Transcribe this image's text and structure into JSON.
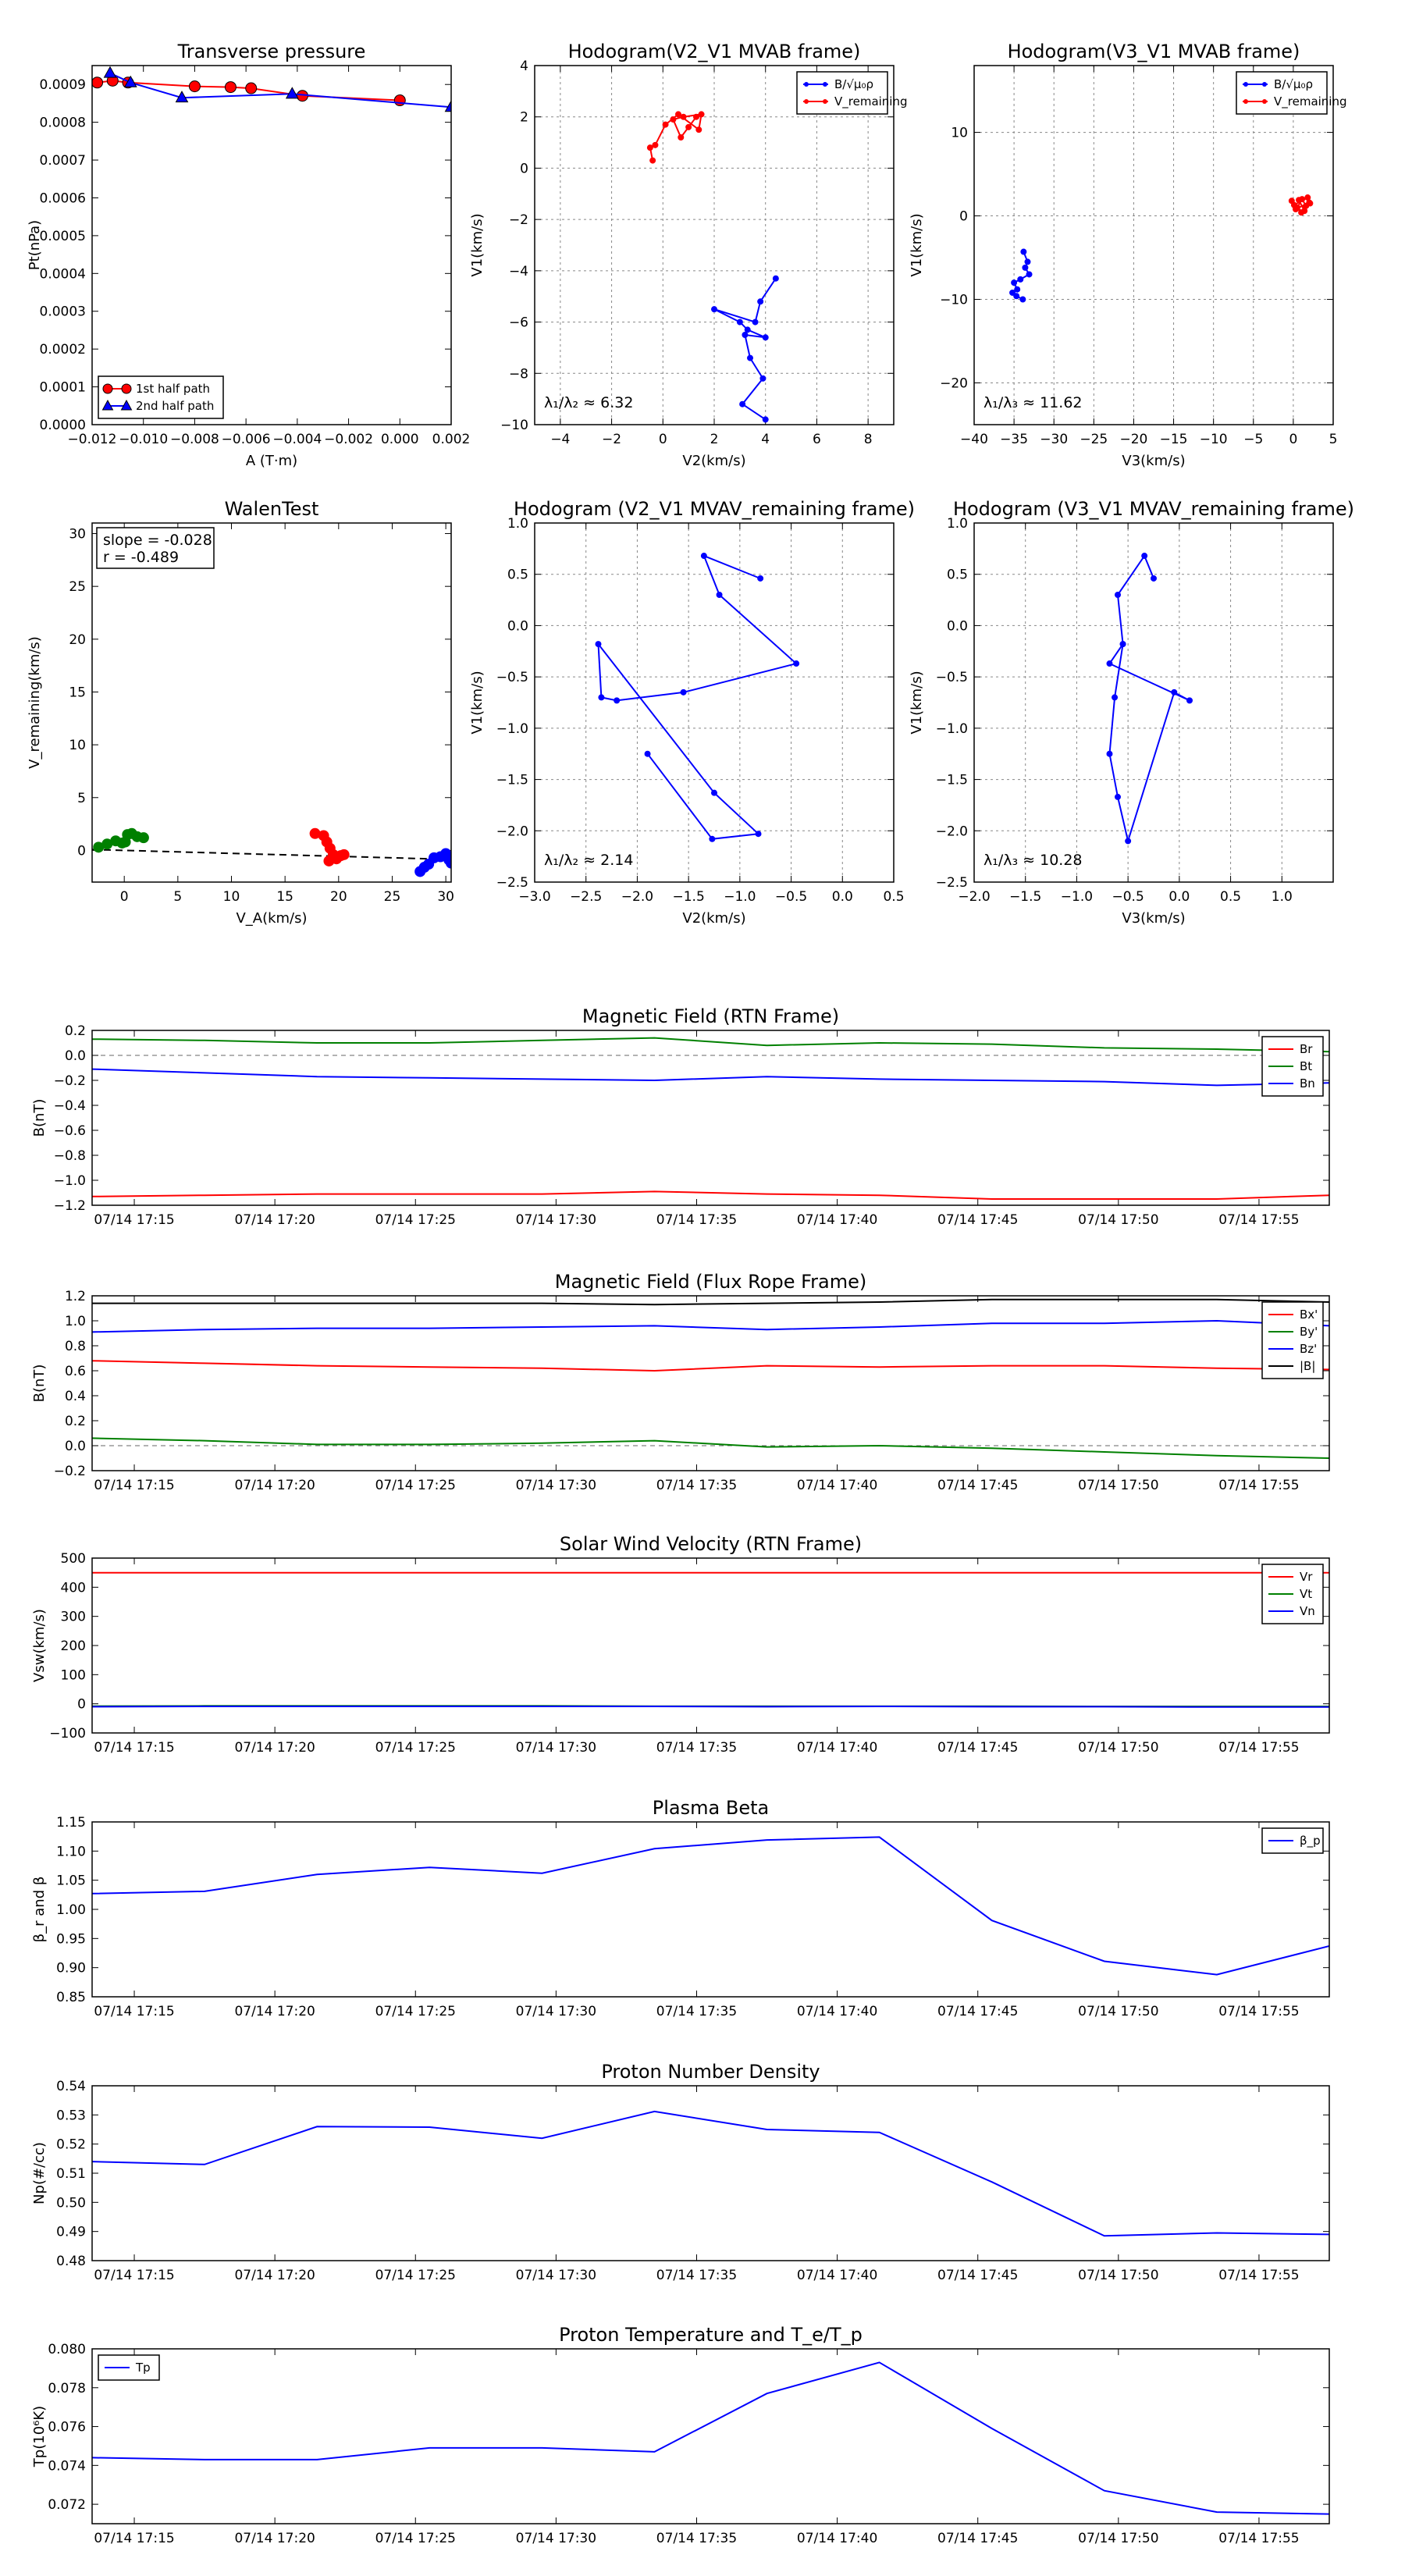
{
  "colors": {
    "red": "#ff0000",
    "green": "#008000",
    "blue": "#0000ff",
    "black": "#000000",
    "grid": "#888888"
  },
  "chart_data": [
    {
      "id": "tp",
      "type": "scatter",
      "title": "Transverse pressure",
      "xlabel": "A (T·m)",
      "ylabel": "Pt(nPa)",
      "xlim": [
        -0.012,
        0.002
      ],
      "ylim": [
        0,
        0.00095
      ],
      "xticks": [
        -0.012,
        -0.01,
        -0.008,
        -0.006,
        -0.004,
        -0.002,
        0.0,
        0.002
      ],
      "xticklabels": [
        "−0.012",
        "−0.010",
        "−0.008",
        "−0.006",
        "−0.004",
        "−0.002",
        "0.000",
        "0.002"
      ],
      "yticks": [
        0,
        0.0001,
        0.0002,
        0.0003,
        0.0004,
        0.0005,
        0.0006,
        0.0007,
        0.0008,
        0.0009
      ],
      "yticklabels": [
        "0.0000",
        "0.0001",
        "0.0002",
        "0.0003",
        "0.0004",
        "0.0005",
        "0.0006",
        "0.0007",
        "0.0008",
        "0.0009"
      ],
      "grid": false,
      "legend": "lower-left",
      "series": [
        {
          "name": "1st half path",
          "color": "red",
          "marker": "circle",
          "x": [
            -0.0118,
            -0.0112,
            -0.0106,
            -0.008,
            -0.0066,
            -0.0058,
            -0.0038,
            0.0
          ],
          "y": [
            0.000905,
            0.00091,
            0.000905,
            0.000895,
            0.000893,
            0.00089,
            0.00087,
            0.000858
          ]
        },
        {
          "name": "2nd half path",
          "color": "blue",
          "marker": "triangle",
          "x": [
            -0.0113,
            -0.0105,
            -0.0085,
            -0.0042,
            0.002
          ],
          "y": [
            0.00093,
            0.000905,
            0.000865,
            0.000875,
            0.00084
          ]
        }
      ]
    },
    {
      "id": "h1",
      "type": "line",
      "title": "Hodogram(V2_V1 MVAB frame)",
      "xlabel": "V2(km/s)",
      "ylabel": "V1(km/s)",
      "xlim": [
        -5,
        9
      ],
      "ylim": [
        -10,
        4
      ],
      "xticks": [
        -4,
        -2,
        0,
        2,
        4,
        6,
        8
      ],
      "xticklabels": [
        "−4",
        "−2",
        "0",
        "2",
        "4",
        "6",
        "8"
      ],
      "yticks": [
        -10,
        -8,
        -6,
        -4,
        -2,
        0,
        2,
        4
      ],
      "yticklabels": [
        "−10",
        "−8",
        "−6",
        "−4",
        "−2",
        "0",
        "2",
        "4"
      ],
      "grid": true,
      "legend": "upper-right",
      "annotation": "λ₁/λ₂ ≈ 6.32",
      "series": [
        {
          "name": "B/√μ₀ρ",
          "color": "blue",
          "x": [
            4.4,
            3.8,
            3.6,
            2.0,
            3.0,
            3.3,
            4.0,
            3.2,
            3.4,
            3.9,
            3.1,
            4.0
          ],
          "y": [
            -4.3,
            -5.2,
            -6.0,
            -5.5,
            -6.0,
            -6.3,
            -6.6,
            -6.5,
            -7.4,
            -8.2,
            -9.2,
            -9.8
          ]
        },
        {
          "name": "V_remaining",
          "color": "red",
          "x": [
            -0.4,
            -0.5,
            -0.3,
            0.1,
            0.6,
            1.4,
            1.5,
            0.8,
            0.4,
            0.7,
            1.0,
            1.3
          ],
          "y": [
            0.3,
            0.8,
            0.9,
            1.7,
            2.1,
            1.5,
            2.1,
            2.0,
            1.9,
            1.2,
            1.6,
            2.0
          ]
        }
      ]
    },
    {
      "id": "h2",
      "type": "line",
      "title": "Hodogram(V3_V1 MVAB frame)",
      "xlabel": "V3(km/s)",
      "ylabel": "V1(km/s)",
      "xlim": [
        -40,
        5
      ],
      "ylim": [
        -25,
        18
      ],
      "xticks": [
        -40,
        -35,
        -30,
        -25,
        -20,
        -15,
        -10,
        -5,
        0,
        5
      ],
      "xticklabels": [
        "−40",
        "−35",
        "−30",
        "−25",
        "−20",
        "−15",
        "−10",
        "−5",
        "0",
        "5"
      ],
      "yticks": [
        -20,
        -10,
        0,
        10
      ],
      "yticklabels": [
        "−20",
        "−10",
        "0",
        "10"
      ],
      "grid": true,
      "legend": "upper-right",
      "annotation": "λ₁/λ₃ ≈ 11.62",
      "series": [
        {
          "name": "B/√μ₀ρ",
          "color": "blue",
          "x": [
            -33.8,
            -33.3,
            -33.6,
            -33.1,
            -34.2,
            -35.0,
            -34.6,
            -35.2,
            -34.7,
            -33.9
          ],
          "y": [
            -4.3,
            -5.5,
            -6.2,
            -7.0,
            -7.6,
            -8.0,
            -8.8,
            -9.2,
            -9.6,
            -10.0
          ]
        },
        {
          "name": "V_remaining",
          "color": "red",
          "x": [
            -0.2,
            0.5,
            1.1,
            1.6,
            2.0,
            0.3,
            1.4,
            0.7,
            1.8,
            0.1,
            1.0,
            2.1
          ],
          "y": [
            1.8,
            1.0,
            2.0,
            1.2,
            1.6,
            0.8,
            0.6,
            1.9,
            2.2,
            1.3,
            0.4,
            1.5
          ]
        }
      ]
    },
    {
      "id": "walen",
      "type": "scatter",
      "title": "WalenTest",
      "xlabel": "V_A(km/s)",
      "ylabel": "V_remaining(km/s)",
      "xlim": [
        -3,
        30.5
      ],
      "ylim": [
        -3,
        31
      ],
      "xticks": [
        0,
        5,
        10,
        15,
        20,
        25,
        30
      ],
      "xticklabels": [
        "0",
        "5",
        "10",
        "15",
        "20",
        "25",
        "30"
      ],
      "yticks": [
        0,
        5,
        10,
        15,
        20,
        25,
        30
      ],
      "yticklabels": [
        "0",
        "5",
        "10",
        "15",
        "20",
        "25",
        "30"
      ],
      "grid": false,
      "annotation": [
        "slope = -0.028",
        "r = -0.489"
      ],
      "fit_line": {
        "color": "black",
        "dash": true,
        "x": [
          -3,
          30.5
        ],
        "y": [
          0.084,
          -0.854
        ]
      },
      "series": [
        {
          "name": "green",
          "color": "green",
          "x": [
            -2.4,
            -1.6,
            -0.8,
            -0.2,
            0.3,
            0.7,
            1.2,
            1.8,
            0.1
          ],
          "y": [
            0.3,
            0.6,
            0.9,
            0.7,
            1.5,
            1.6,
            1.3,
            1.2,
            0.8
          ]
        },
        {
          "name": "red",
          "color": "red",
          "x": [
            17.8,
            18.6,
            18.9,
            19.2,
            19.5,
            19.8,
            20.2,
            20.5,
            19.1
          ],
          "y": [
            1.6,
            1.4,
            0.8,
            0.2,
            -0.4,
            -0.8,
            -0.5,
            -0.4,
            -1.0
          ]
        },
        {
          "name": "blue",
          "color": "blue",
          "x": [
            27.6,
            28.0,
            28.4,
            28.9,
            29.5,
            30.0,
            30.3,
            30.5
          ],
          "y": [
            -2.0,
            -1.6,
            -1.3,
            -0.7,
            -0.6,
            -0.3,
            -0.9,
            -1.2
          ]
        }
      ]
    },
    {
      "id": "h3",
      "type": "line",
      "title": "Hodogram (V2_V1 MVAV_remaining frame)",
      "xlabel": "V2(km/s)",
      "ylabel": "V1(km/s)",
      "xlim": [
        -3.0,
        0.5
      ],
      "ylim": [
        -2.5,
        1.0
      ],
      "xticks": [
        -3.0,
        -2.5,
        -2.0,
        -1.5,
        -1.0,
        -0.5,
        0.0,
        0.5
      ],
      "xticklabels": [
        "−3.0",
        "−2.5",
        "−2.0",
        "−1.5",
        "−1.0",
        "−0.5",
        "0.0",
        "0.5"
      ],
      "yticks": [
        -2.5,
        -2.0,
        -1.5,
        -1.0,
        -0.5,
        0.0,
        0.5,
        1.0
      ],
      "yticklabels": [
        "−2.5",
        "−2.0",
        "−1.5",
        "−1.0",
        "−0.5",
        "0.0",
        "0.5",
        "1.0"
      ],
      "grid": true,
      "annotation": "λ₁/λ₂ ≈ 2.14",
      "series": [
        {
          "name": "path",
          "color": "blue",
          "x": [
            -0.8,
            -1.35,
            -1.2,
            -0.45,
            -1.55,
            -2.2,
            -2.35,
            -2.38,
            -1.25,
            -0.82,
            -1.27,
            -1.9
          ],
          "y": [
            0.46,
            0.68,
            0.3,
            -0.37,
            -0.65,
            -0.73,
            -0.7,
            -0.18,
            -1.63,
            -2.03,
            -2.08,
            -1.25
          ]
        }
      ]
    },
    {
      "id": "h4",
      "type": "line",
      "title": "Hodogram (V3_V1 MVAV_remaining frame)",
      "xlabel": "V3(km/s)",
      "ylabel": "V1(km/s)",
      "xlim": [
        -2.0,
        1.5
      ],
      "ylim": [
        -2.5,
        1.0
      ],
      "xticks": [
        -2.0,
        -1.5,
        -1.0,
        -0.5,
        0.0,
        0.5,
        1.0
      ],
      "xticklabels": [
        "−2.0",
        "−1.5",
        "−1.0",
        "−0.5",
        "0.0",
        "0.5",
        "1.0"
      ],
      "yticks": [
        -2.5,
        -2.0,
        -1.5,
        -1.0,
        -0.5,
        0.0,
        0.5,
        1.0
      ],
      "yticklabels": [
        "−2.5",
        "−2.0",
        "−1.5",
        "−1.0",
        "−0.5",
        "0.0",
        "0.5",
        "1.0"
      ],
      "grid": true,
      "annotation": "λ₁/λ₃ ≈ 10.28",
      "series": [
        {
          "name": "path",
          "color": "blue",
          "x": [
            -0.25,
            -0.34,
            -0.6,
            -0.55,
            -0.68,
            0.1,
            -0.05,
            -0.5,
            -0.6,
            -0.68,
            -0.63,
            -0.55
          ],
          "y": [
            0.46,
            0.68,
            0.3,
            -0.18,
            -0.37,
            -0.73,
            -0.65,
            -2.1,
            -1.67,
            -1.25,
            -0.7,
            -0.18
          ]
        }
      ]
    },
    {
      "id": "mag_rtn",
      "type": "line",
      "title": "Magnetic Field (RTN Frame)",
      "ylabel": "B(nT)",
      "ylim": [
        -1.2,
        0.2
      ],
      "yticks": [
        -1.2,
        -1.0,
        -0.8,
        -0.6,
        -0.4,
        -0.2,
        0.0,
        0.2
      ],
      "yticklabels": [
        "−1.2",
        "−1.0",
        "−0.8",
        "−0.6",
        "−0.4",
        "−0.2",
        "0.0",
        "0.2"
      ],
      "zero_line": true,
      "legend": "upper-right",
      "series": [
        {
          "name": "Br",
          "color": "red",
          "values": [
            -1.13,
            -1.12,
            -1.11,
            -1.11,
            -1.11,
            -1.09,
            -1.11,
            -1.12,
            -1.15,
            -1.15,
            -1.15,
            -1.12
          ]
        },
        {
          "name": "Bt",
          "color": "green",
          "values": [
            0.13,
            0.12,
            0.1,
            0.1,
            0.12,
            0.14,
            0.08,
            0.1,
            0.09,
            0.06,
            0.05,
            0.03
          ]
        },
        {
          "name": "Bn",
          "color": "blue",
          "values": [
            -0.11,
            -0.14,
            -0.17,
            -0.18,
            -0.19,
            -0.2,
            -0.17,
            -0.19,
            -0.2,
            -0.21,
            -0.24,
            -0.22
          ]
        }
      ]
    },
    {
      "id": "mag_fr",
      "type": "line",
      "title": "Magnetic Field (Flux Rope Frame)",
      "ylabel": "B(nT)",
      "ylim": [
        -0.2,
        1.2
      ],
      "yticks": [
        -0.2,
        0.0,
        0.2,
        0.4,
        0.6,
        0.8,
        1.0,
        1.2
      ],
      "yticklabels": [
        "−0.2",
        "0.0",
        "0.2",
        "0.4",
        "0.6",
        "0.8",
        "1.0",
        "1.2"
      ],
      "zero_line": true,
      "legend": "upper-right",
      "series": [
        {
          "name": "Bx'",
          "color": "red",
          "values": [
            0.68,
            0.66,
            0.64,
            0.63,
            0.62,
            0.6,
            0.64,
            0.63,
            0.64,
            0.64,
            0.62,
            0.61
          ]
        },
        {
          "name": "By'",
          "color": "green",
          "values": [
            0.06,
            0.04,
            0.01,
            0.01,
            0.02,
            0.04,
            -0.01,
            0.0,
            -0.02,
            -0.05,
            -0.08,
            -0.1
          ]
        },
        {
          "name": "Bz'",
          "color": "blue",
          "values": [
            0.91,
            0.93,
            0.94,
            0.94,
            0.95,
            0.96,
            0.93,
            0.95,
            0.98,
            0.98,
            1.0,
            0.96
          ]
        },
        {
          "name": "|B|",
          "color": "black",
          "values": [
            1.14,
            1.14,
            1.14,
            1.14,
            1.14,
            1.13,
            1.14,
            1.15,
            1.17,
            1.17,
            1.17,
            1.15
          ]
        }
      ]
    },
    {
      "id": "vel",
      "type": "line",
      "title": "Solar Wind Velocity (RTN Frame)",
      "ylabel": "Vsw(km/s)",
      "ylim": [
        -100,
        500
      ],
      "yticks": [
        -100,
        0,
        100,
        200,
        300,
        400,
        500
      ],
      "yticklabels": [
        "−100",
        "0",
        "100",
        "200",
        "300",
        "400",
        "500"
      ],
      "legend": "upper-right",
      "series": [
        {
          "name": "Vr",
          "color": "red",
          "values": [
            450,
            450,
            450,
            450,
            450,
            450,
            450,
            450,
            450,
            450,
            450,
            450
          ]
        },
        {
          "name": "Vt",
          "color": "green",
          "values": [
            -8,
            -7,
            -7,
            -7,
            -7,
            -8,
            -8,
            -8,
            -8,
            -9,
            -9,
            -9
          ]
        },
        {
          "name": "Vn",
          "color": "blue",
          "values": [
            -10,
            -9,
            -9,
            -9,
            -9,
            -9,
            -10,
            -9,
            -10,
            -10,
            -11,
            -11
          ]
        }
      ]
    },
    {
      "id": "beta",
      "type": "line",
      "title": "Plasma Beta",
      "ylabel": "β_r and β",
      "ylim": [
        0.85,
        1.15
      ],
      "yticks": [
        0.85,
        0.9,
        0.95,
        1.0,
        1.05,
        1.1,
        1.15
      ],
      "yticklabels": [
        "0.85",
        "0.90",
        "0.95",
        "1.00",
        "1.05",
        "1.10",
        "1.15"
      ],
      "legend": "upper-right",
      "series": [
        {
          "name": "β_p",
          "color": "blue",
          "values": [
            1.027,
            1.031,
            1.06,
            1.072,
            1.062,
            1.104,
            1.119,
            1.124,
            0.981,
            0.911,
            0.888,
            0.937
          ]
        }
      ]
    },
    {
      "id": "np",
      "type": "line",
      "title": "Proton Number Density",
      "ylabel": "Np(#/cc)",
      "ylim": [
        0.48,
        0.54
      ],
      "yticks": [
        0.48,
        0.49,
        0.5,
        0.51,
        0.52,
        0.53,
        0.54
      ],
      "yticklabels": [
        "0.48",
        "0.49",
        "0.50",
        "0.51",
        "0.52",
        "0.53",
        "0.54"
      ],
      "series": [
        {
          "name": "Np",
          "color": "blue",
          "values": [
            0.514,
            0.513,
            0.526,
            0.5258,
            0.522,
            0.5312,
            0.525,
            0.524,
            0.507,
            0.4885,
            0.4895,
            0.489
          ]
        }
      ]
    },
    {
      "id": "tp2",
      "type": "line",
      "title": "Proton Temperature and T_e/T_p",
      "ylabel": "Tp(10⁶K)",
      "ylim": [
        0.071,
        0.08
      ],
      "yticks": [
        0.072,
        0.074,
        0.076,
        0.078,
        0.08
      ],
      "yticklabels": [
        "0.072",
        "0.074",
        "0.076",
        "0.078",
        "0.080"
      ],
      "legend": "upper-left",
      "series": [
        {
          "name": "Tp",
          "color": "blue",
          "values": [
            0.0744,
            0.0743,
            0.0743,
            0.0749,
            0.0749,
            0.0747,
            0.0777,
            0.0793,
            0.0759,
            0.0727,
            0.0716,
            0.0715
          ]
        }
      ]
    }
  ],
  "time_axis": {
    "x": [
      0,
      4,
      8,
      12,
      16,
      20,
      24,
      28,
      32,
      36,
      40,
      44
    ],
    "xlim": [
      0,
      44
    ],
    "ticks": [
      1.5,
      6.5,
      11.5,
      16.5,
      21.5,
      26.5,
      31.5,
      36.5,
      41.5
    ],
    "ticklabels": [
      "07/14 17:15",
      "07/14 17:20",
      "07/14 17:25",
      "07/14 17:30",
      "07/14 17:35",
      "07/14 17:40",
      "07/14 17:45",
      "07/14 17:50",
      "07/14 17:55"
    ]
  }
}
